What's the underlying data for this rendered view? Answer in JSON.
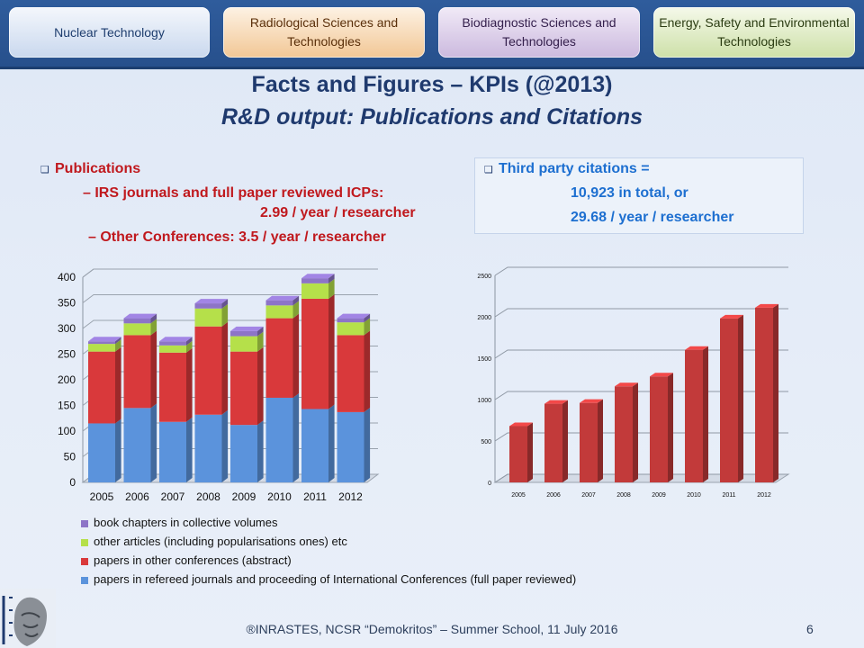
{
  "nav": {
    "tabs": [
      {
        "label": "Nuclear Technology"
      },
      {
        "label": "Radiological Sciences and Technologies"
      },
      {
        "label": "Biodiagnostic Sciences and Technologies"
      },
      {
        "label": "Energy, Safety and Environmental Technologies"
      }
    ]
  },
  "slide": {
    "title": "Facts and Figures – KPIs (@2013)",
    "subtitle": "R&D output: Publications  and Citations",
    "publications": {
      "heading": "Publications",
      "line1": "– IRS  journals and full paper reviewed ICPs:",
      "line2": "2.99 / year / researcher",
      "line3": "– Other Conferences: 3.5 / year / researcher"
    },
    "citations": {
      "heading": "Third party citations =",
      "line1": "10,923 in total, or",
      "line2": "29.68 / year / researcher"
    },
    "footer": "®INRASTES, NCSR “Demokritos” – Summer School, 11 July 2016",
    "page_number": "6"
  },
  "colors": {
    "blue": "#5b93dc",
    "red": "#d9393b",
    "green": "#b5e04a",
    "purple": "#8d74c7",
    "citation_bar": "#c23a3a"
  },
  "chart_data": [
    {
      "type": "bar",
      "stacked": true,
      "categories": [
        "2005",
        "2006",
        "2007",
        "2008",
        "2009",
        "2010",
        "2011",
        "2012"
      ],
      "series": [
        {
          "name": "papers in refereed journals and proceeding of International Conferences (full paper reviewed)",
          "values": [
            115,
            145,
            118,
            132,
            112,
            165,
            143,
            137
          ]
        },
        {
          "name": "papers in other conferences (abstract)",
          "values": [
            140,
            142,
            135,
            172,
            143,
            155,
            215,
            150
          ]
        },
        {
          "name": "other articles (including popularisations ones) etc",
          "values": [
            15,
            23,
            14,
            35,
            30,
            25,
            30,
            25
          ]
        },
        {
          "name": "book chapters in collective volumes",
          "values": [
            5,
            10,
            8,
            10,
            10,
            10,
            10,
            8
          ]
        }
      ],
      "yticks": [
        0,
        50,
        100,
        150,
        200,
        250,
        300,
        350,
        400
      ],
      "ylim": [
        0,
        400
      ],
      "grid": true,
      "legend": "bottom"
    },
    {
      "type": "bar",
      "categories": [
        "2005",
        "2006",
        "2007",
        "2008",
        "2009",
        "2010",
        "2011",
        "2012"
      ],
      "values": [
        680,
        950,
        960,
        1160,
        1280,
        1600,
        1980,
        2110
      ],
      "yticks": [
        0,
        500,
        1000,
        1500,
        2000,
        2500
      ],
      "ylim": [
        0,
        2500
      ],
      "grid": true
    }
  ]
}
